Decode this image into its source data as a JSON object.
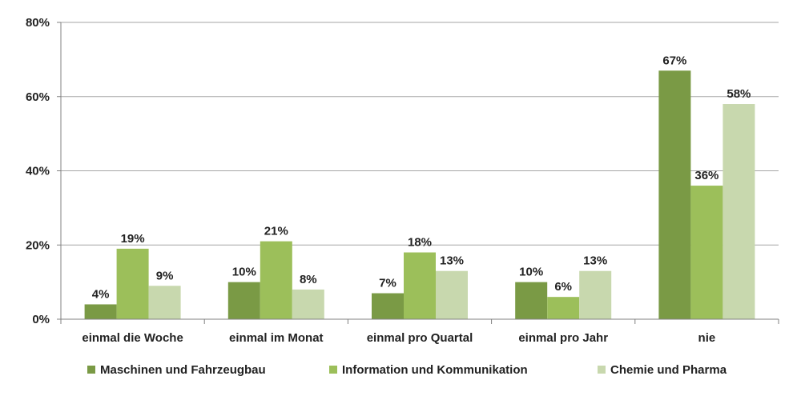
{
  "chart_data": {
    "type": "bar",
    "title": "",
    "xlabel": "",
    "ylabel": "",
    "ylim": [
      0,
      80
    ],
    "yticks": [
      0,
      20,
      40,
      60,
      80
    ],
    "ytick_labels": [
      "0%",
      "20%",
      "40%",
      "60%",
      "80%"
    ],
    "grid": true,
    "legend_position": "bottom",
    "categories": [
      "einmal die Woche",
      "einmal im Monat",
      "einmal pro Quartal",
      "einmal pro Jahr",
      "nie"
    ],
    "series": [
      {
        "name": "Maschinen und Fahrzeugbau",
        "color": "#7a9a45",
        "values": [
          4,
          10,
          7,
          10,
          67
        ],
        "labels": [
          "4%",
          "10%",
          "7%",
          "10%",
          "67%"
        ]
      },
      {
        "name": "Information und Kommunikation",
        "color": "#9cbf5a",
        "values": [
          19,
          21,
          18,
          6,
          36
        ],
        "labels": [
          "19%",
          "21%",
          "18%",
          "6%",
          "36%"
        ]
      },
      {
        "name": "Chemie und Pharma",
        "color": "#c8d8ae",
        "values": [
          9,
          8,
          13,
          13,
          58
        ],
        "labels": [
          "9%",
          "8%",
          "13%",
          "13%",
          "58%"
        ]
      }
    ]
  }
}
